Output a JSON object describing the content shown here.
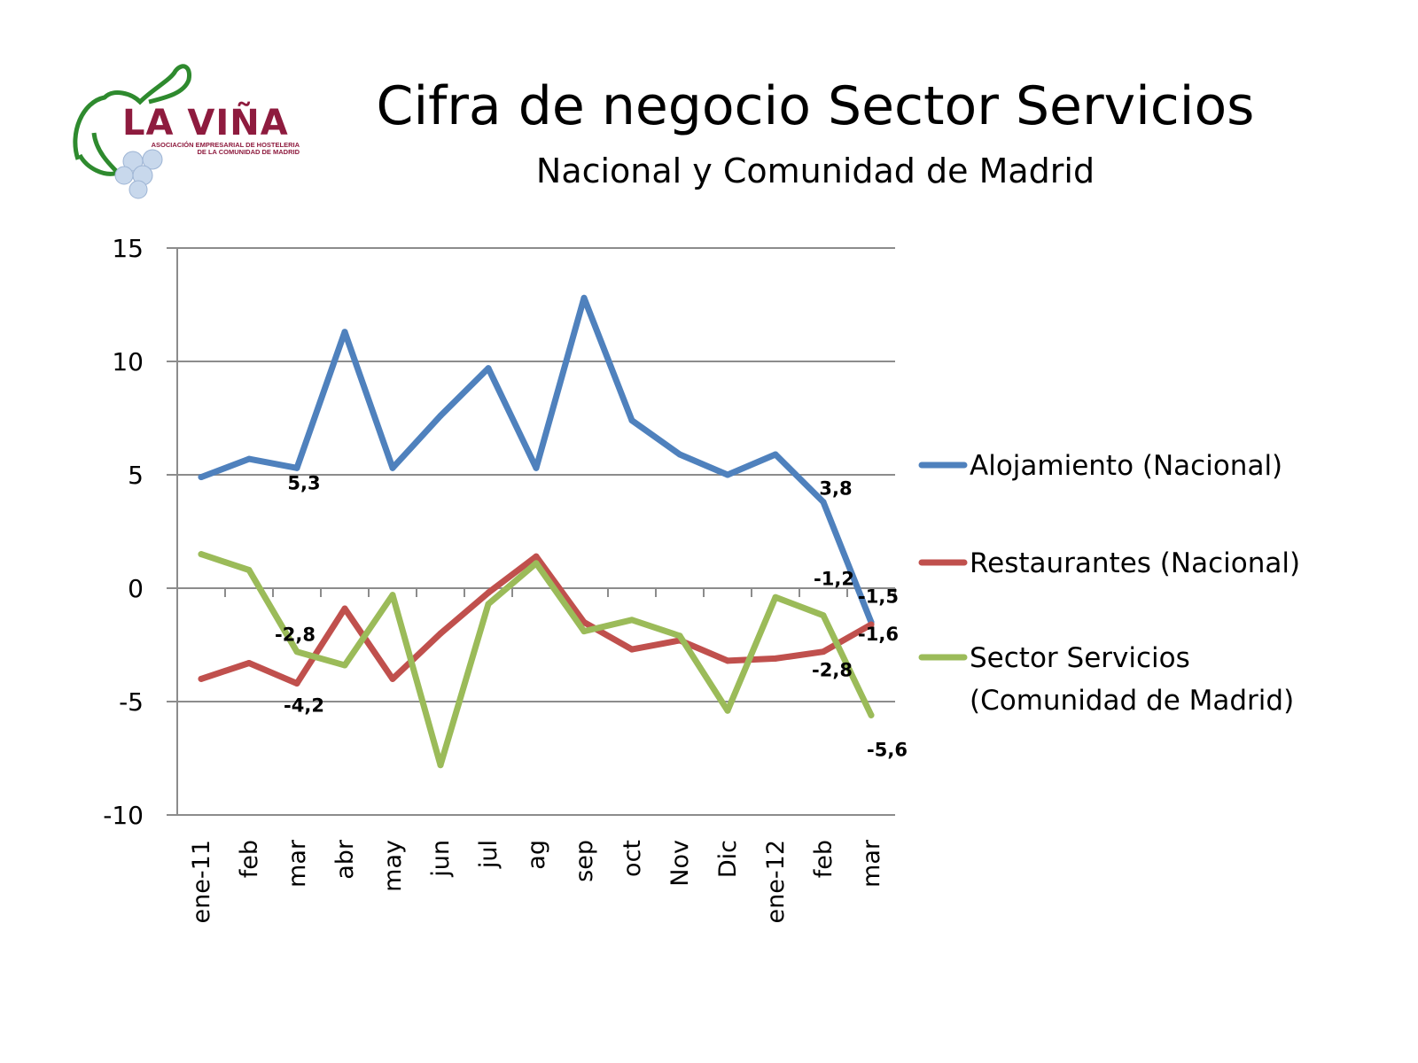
{
  "logo": {
    "name": "LA VIÑA",
    "subtitle_line1": "ASOCIACIÓN EMPRESARIAL DE HOSTELERIA",
    "subtitle_line2": "DE LA COMUNIDAD DE MADRID",
    "colors": {
      "text": "#8e1b3e",
      "leaf": "#2e8a2e",
      "grapes": "#c8d8ec"
    }
  },
  "chart_data": {
    "type": "line",
    "title": "Cifra de negocio Sector Servicios",
    "subtitle": "Nacional y Comunidad de Madrid",
    "categories": [
      "ene-11",
      "feb",
      "mar",
      "abr",
      "may",
      "jun",
      "jul",
      "ag",
      "sep",
      "oct",
      "Nov",
      "Dic",
      "ene-12",
      "feb",
      "mar"
    ],
    "ylim": [
      -10,
      15
    ],
    "yticks": [
      15,
      10,
      5,
      0,
      -5,
      -10
    ],
    "grid": true,
    "legend_position": "right",
    "series": [
      {
        "name": "Alojamiento (Nacional)",
        "color": "#4f81bd",
        "values": [
          4.9,
          5.7,
          5.3,
          11.3,
          5.3,
          7.6,
          9.7,
          5.3,
          12.8,
          7.4,
          5.9,
          5.0,
          5.9,
          3.8,
          -1.5
        ]
      },
      {
        "name": "Restaurantes (Nacional)",
        "color": "#c0504d",
        "values": [
          -4.0,
          -3.3,
          -4.2,
          -0.9,
          -4.0,
          -2.0,
          -0.2,
          1.4,
          -1.5,
          -2.7,
          -2.3,
          -3.2,
          -3.1,
          -2.8,
          -1.6
        ]
      },
      {
        "name": "Sector Servicios\n(Comunidad de Madrid)",
        "color": "#9bbb59",
        "values": [
          1.5,
          0.8,
          -2.8,
          -3.4,
          -0.3,
          -7.8,
          -0.7,
          1.1,
          -1.9,
          -1.4,
          -2.1,
          -5.4,
          -0.4,
          -1.2,
          -5.6
        ]
      }
    ],
    "data_labels": [
      {
        "series": 0,
        "index": 2,
        "text": "5,3"
      },
      {
        "series": 0,
        "index": 13,
        "text": "3,8"
      },
      {
        "series": 0,
        "index": 14,
        "text": "-1,5"
      },
      {
        "series": 1,
        "index": 2,
        "text": "-4,2"
      },
      {
        "series": 1,
        "index": 13,
        "text": "-2,8"
      },
      {
        "series": 1,
        "index": 14,
        "text": "-1,6"
      },
      {
        "series": 2,
        "index": 2,
        "text": "-2,8"
      },
      {
        "series": 2,
        "index": 13,
        "text": "-1,2"
      },
      {
        "series": 2,
        "index": 14,
        "text": "-5,6"
      }
    ]
  }
}
